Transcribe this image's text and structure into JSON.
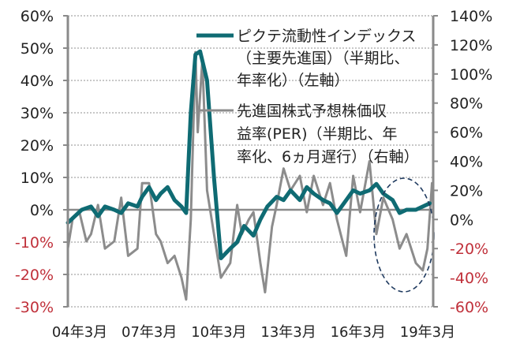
{
  "chart_data": {
    "type": "line",
    "title": "",
    "xlabel": "",
    "ylabel_left": "",
    "ylabel_right": "",
    "x_tick_labels": [
      "04年3月",
      "07年3月",
      "10年3月",
      "13年3月",
      "16年3月",
      "19年3月"
    ],
    "left_axis": {
      "ticks": [
        "60%",
        "50%",
        "40%",
        "30%",
        "20%",
        "10%",
        "0%",
        "-10%",
        "-20%",
        "-30%"
      ],
      "values": [
        60,
        50,
        40,
        30,
        20,
        10,
        0,
        -10,
        -20,
        -30
      ],
      "ylim": [
        -30,
        60
      ],
      "negative_color": "#c0303a"
    },
    "right_axis": {
      "ticks": [
        "140%",
        "120%",
        "100%",
        "80%",
        "60%",
        "40%",
        "20%",
        "0%",
        "-20%",
        "-40%",
        "-60%"
      ],
      "values": [
        140,
        120,
        100,
        80,
        60,
        40,
        20,
        0,
        -20,
        -40,
        -60
      ],
      "ylim": [
        -60,
        140
      ],
      "negative_color": "#c0303a"
    },
    "grid": true,
    "legend_position": "upper-right inside",
    "legend": [
      {
        "lines": [
          "ピクテ流動性インデックス",
          "（主要先進国）（半期比、",
          "年率化）（左軸）"
        ],
        "color": "#0f6b73",
        "axis": "left"
      },
      {
        "lines": [
          "先進国株式予想株価収",
          "益率(PER)（半期比、年",
          "率化、6ヵ月遅行）（右軸）"
        ],
        "color": "#8c8c8c",
        "axis": "right"
      }
    ],
    "annotation": "dashed ellipse highlighting 2018–2019 period",
    "series": [
      {
        "name": "ピクテ流動性インデックス（主要先進国）（半期比、年率化）（左軸）",
        "axis": "left",
        "color": "#0f6b73",
        "x": [
          2004.0,
          2004.3,
          2004.6,
          2005.0,
          2005.3,
          2005.6,
          2006.0,
          2006.3,
          2006.6,
          2007.0,
          2007.2,
          2007.5,
          2007.8,
          2008.0,
          2008.3,
          2008.6,
          2008.9,
          2009.1,
          2009.3,
          2009.5,
          2009.7,
          2010.0,
          2010.3,
          2010.6,
          2011.0,
          2011.3,
          2011.6,
          2012.0,
          2012.3,
          2012.6,
          2013.0,
          2013.3,
          2013.6,
          2014.0,
          2014.3,
          2014.6,
          2015.0,
          2015.3,
          2015.6,
          2016.0,
          2016.3,
          2016.6,
          2017.0,
          2017.3,
          2017.6,
          2018.0,
          2018.3,
          2018.6,
          2019.0,
          2019.3,
          2019.6
        ],
        "values": [
          -4,
          -2,
          0,
          1,
          -2,
          1,
          0,
          -1,
          2,
          1,
          4,
          7,
          3,
          5,
          7,
          3,
          1,
          -1,
          30,
          48,
          49,
          40,
          10,
          -15,
          -12,
          -10,
          -5,
          -8,
          -3,
          1,
          4,
          3,
          6,
          3,
          7,
          5,
          3,
          2,
          -1,
          3,
          6,
          5,
          6,
          8,
          5,
          3,
          -1,
          0,
          0,
          1,
          2
        ]
      },
      {
        "name": "先進国株式予想株価収益率(PER)（半期比、年率化、6ヵ月遅行）（右軸）",
        "axis": "right",
        "color": "#8c8c8c",
        "x": [
          2004.0,
          2004.2,
          2004.5,
          2004.8,
          2005.0,
          2005.3,
          2005.6,
          2006.0,
          2006.3,
          2006.6,
          2007.0,
          2007.2,
          2007.5,
          2007.8,
          2008.0,
          2008.3,
          2008.6,
          2008.9,
          2009.1,
          2009.3,
          2009.5,
          2009.6,
          2009.8,
          2010.0,
          2010.3,
          2010.6,
          2011.0,
          2011.3,
          2011.5,
          2011.8,
          2012.0,
          2012.3,
          2012.5,
          2012.8,
          2013.0,
          2013.3,
          2013.6,
          2014.0,
          2014.3,
          2014.6,
          2015.0,
          2015.3,
          2015.6,
          2016.0,
          2016.3,
          2016.6,
          2017.0,
          2017.3,
          2017.6,
          2018.0,
          2018.3,
          2018.6,
          2019.0,
          2019.3,
          2019.5,
          2019.7
        ],
        "values": [
          -20,
          0,
          5,
          -15,
          -10,
          10,
          -20,
          -15,
          15,
          -25,
          -20,
          25,
          25,
          -10,
          -15,
          -30,
          -25,
          -40,
          -55,
          0,
          115,
          60,
          110,
          20,
          -10,
          -40,
          -30,
          10,
          -10,
          0,
          5,
          -30,
          -50,
          -5,
          10,
          35,
          20,
          30,
          5,
          30,
          10,
          25,
          0,
          -25,
          30,
          5,
          40,
          -10,
          15,
          0,
          -20,
          -10,
          -30,
          -35,
          -20,
          25
        ]
      }
    ]
  }
}
